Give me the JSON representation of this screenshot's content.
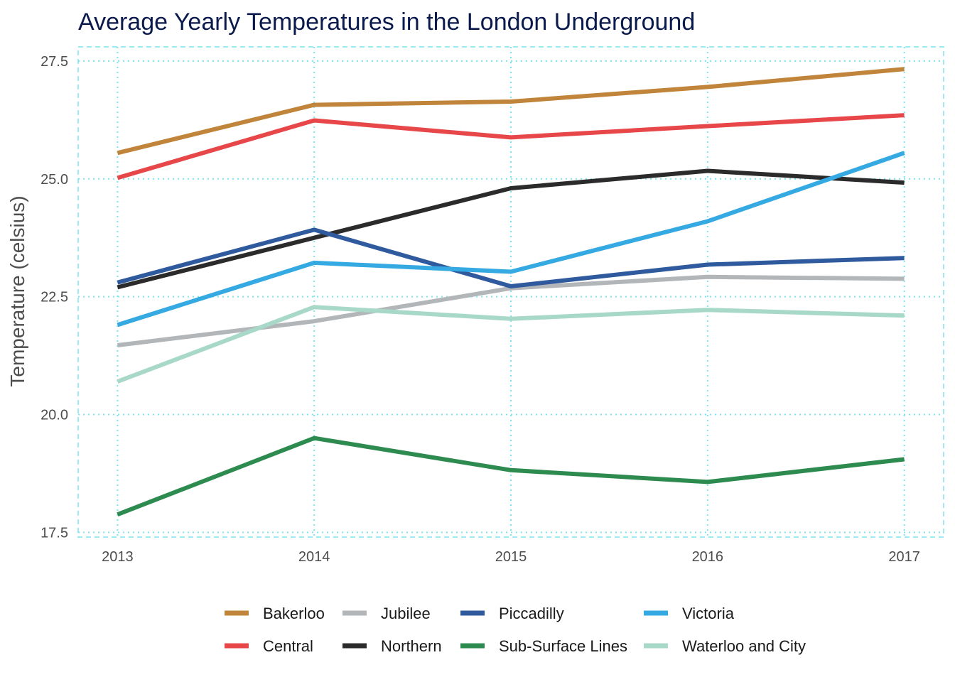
{
  "chart_data": {
    "type": "line",
    "title": "Average Yearly Temperatures in the London Underground",
    "xlabel": "",
    "ylabel": "Temperature (celsius)",
    "x": [
      "2013",
      "2014",
      "2015",
      "2016",
      "2017"
    ],
    "xlim": [
      2012.8,
      2017.2
    ],
    "ylim": [
      17.4,
      27.8
    ],
    "y_ticks": [
      17.5,
      20.0,
      22.5,
      25.0,
      27.5
    ],
    "y_tick_labels": [
      "17.5",
      "20.0",
      "22.5",
      "25.0",
      "27.5"
    ],
    "grid": true,
    "grid_color": "#7fe3ee",
    "legend_position": "bottom",
    "series": [
      {
        "name": "Bakerloo",
        "color": "#c0843a",
        "values": [
          25.55,
          26.57,
          26.64,
          26.95,
          27.33
        ]
      },
      {
        "name": "Central",
        "color": "#e8474a",
        "values": [
          25.02,
          26.24,
          25.88,
          26.12,
          26.35
        ]
      },
      {
        "name": "Jubilee",
        "color": "#b3b6b9",
        "values": [
          21.47,
          21.98,
          22.68,
          22.92,
          22.88
        ]
      },
      {
        "name": "Northern",
        "color": "#2b2b2b",
        "values": [
          22.7,
          23.75,
          24.8,
          25.17,
          24.92
        ]
      },
      {
        "name": "Piccadilly",
        "color": "#2f5b9e",
        "values": [
          22.8,
          23.92,
          22.72,
          23.18,
          23.32
        ]
      },
      {
        "name": "Sub-Surface Lines",
        "color": "#2e8b50",
        "values": [
          17.88,
          19.5,
          18.82,
          18.57,
          19.05
        ]
      },
      {
        "name": "Victoria",
        "color": "#35a9e1",
        "values": [
          21.9,
          23.22,
          23.03,
          24.1,
          25.55
        ]
      },
      {
        "name": "Waterloo and City",
        "color": "#a8d8c8",
        "values": [
          20.7,
          22.28,
          22.03,
          22.22,
          22.1
        ]
      }
    ]
  }
}
